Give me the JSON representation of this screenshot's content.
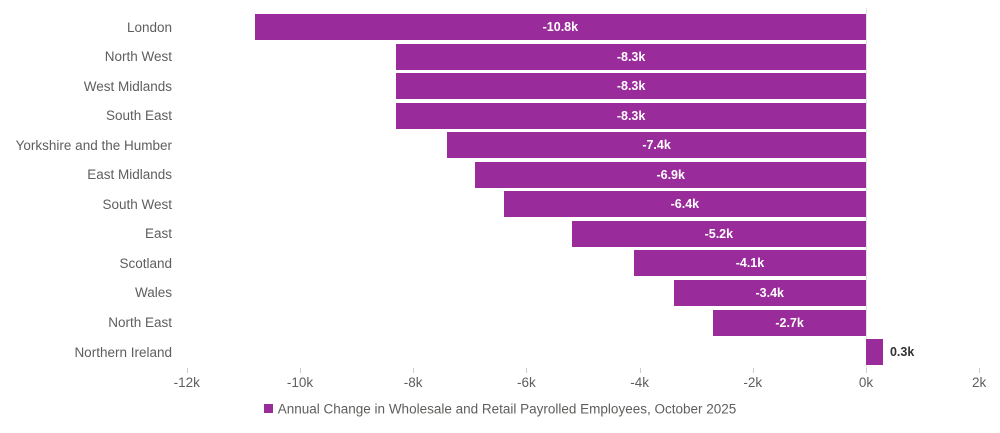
{
  "chart_data": {
    "type": "bar",
    "orientation": "horizontal",
    "title": "",
    "legend": "Annual Change in Wholesale and Retail Payrolled Employees, October 2025",
    "legend_position": "bottom-center",
    "categories": [
      "London",
      "North West",
      "West Midlands",
      "South East",
      "Yorkshire and the Humber",
      "East Midlands",
      "South West",
      "East",
      "Scotland",
      "Wales",
      "North East",
      "Northern Ireland"
    ],
    "values_thousands": [
      -10.8,
      -8.3,
      -8.3,
      -8.3,
      -7.4,
      -6.9,
      -6.4,
      -5.2,
      -4.1,
      -3.4,
      -2.7,
      0.3
    ],
    "value_labels": [
      "-10.8k",
      "-8.3k",
      "-8.3k",
      "-8.3k",
      "-7.4k",
      "-6.9k",
      "-6.4k",
      "-5.2k",
      "-4.1k",
      "-3.4k",
      "-2.7k",
      "0.3k"
    ],
    "x_ticks": [
      {
        "value": -12,
        "label": "-12k"
      },
      {
        "value": -10,
        "label": "-10k"
      },
      {
        "value": -8,
        "label": "-8k"
      },
      {
        "value": -6,
        "label": "-6k"
      },
      {
        "value": -4,
        "label": "-4k"
      },
      {
        "value": -2,
        "label": "-2k"
      },
      {
        "value": 0,
        "label": "0k"
      },
      {
        "value": 2,
        "label": "2k"
      }
    ],
    "xlim": [
      -12,
      2
    ],
    "grid": false,
    "colors": {
      "bar": "#9A2B9B",
      "label_inside": "#FFFFFF",
      "label_outside": "#323130",
      "axis_text": "#5E5E5E",
      "legend_text": "#605E5C",
      "zero_line": "#E3E3E3",
      "tick_mark": "#CCCCCC"
    }
  }
}
